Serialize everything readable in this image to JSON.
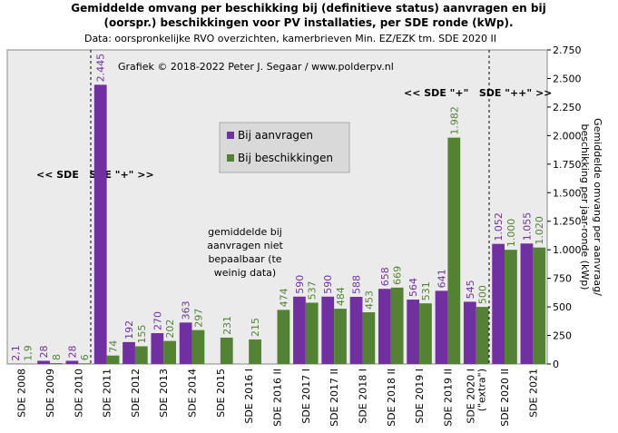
{
  "chart_data": {
    "type": "bar",
    "title_lines": [
      "Gemiddelde omvang per beschikking bij (definitieve status) aanvragen en bij",
      "(oorspr.) beschikkingen voor PV installaties, per SDE ronde (kWp)."
    ],
    "subtitle": "Data: oorspronkelijke RVO overzichten, kamerbrieven Min. EZ/EZK tm. SDE 2020 II",
    "y_label_lines": [
      "Gemiddelde omvang per aanvraag/",
      "beschikking per jaar-ronde (kWp)"
    ],
    "copyright": "Grafiek © 2018-2022 Peter J. Segaar / www.polderpv.nl",
    "era_label_1": "<< SDE   SDE \"+\" >>",
    "era_label_2": "<< SDE \"+\"   SDE \"++\" >>",
    "note_lines": [
      "gemiddelde bij",
      "aanvragen niet",
      "bepaalbaar (te",
      "weinig data)"
    ],
    "categories": [
      "SDE 2008",
      "SDE 2009",
      "SDE 2010",
      "SDE 2011",
      "SDE 2012",
      "SDE 2013",
      "SDE 2014",
      "SDE 2015",
      "SDE 2016 I",
      "SDE 2016 II",
      "SDE 2017 I",
      "SDE 2017 II",
      "SDE 2018 I",
      "SDE 2018 II",
      "SDE 2019 I",
      "SDE 2019 II",
      "SDE 2020 I (\"extra\")",
      "SDE 2020 II",
      "SDE 2021"
    ],
    "series": [
      {
        "name": "Bij aanvragen",
        "color": "#7030a0",
        "values": [
          2.1,
          28,
          28,
          2445,
          192,
          270,
          363,
          null,
          null,
          null,
          590,
          590,
          588,
          658,
          564,
          641,
          545,
          1052,
          1055
        ],
        "value_labels": [
          "2,1",
          "28",
          "28",
          "2.445",
          "192",
          "270",
          "363",
          null,
          null,
          null,
          "590",
          "590",
          "588",
          "658",
          "564",
          "641",
          "545",
          "1.052",
          "1.055"
        ]
      },
      {
        "name": "Bij beschikkingen",
        "color": "#548235",
        "values": [
          1.9,
          8,
          6,
          74,
          155,
          202,
          297,
          231,
          215,
          474,
          537,
          484,
          453,
          669,
          531,
          1982,
          500,
          1000,
          1020
        ],
        "value_labels": [
          "1,9",
          "8",
          "6",
          "74",
          "155",
          "202",
          "297",
          "231",
          "215",
          "474",
          "537",
          "484",
          "453",
          "669",
          "531",
          "1.982",
          "500",
          "1.000",
          "1.020"
        ]
      }
    ],
    "ylim": [
      0,
      2750
    ],
    "yticks": [
      0,
      250,
      500,
      750,
      {
        "value": 1000,
        "label": "1.000"
      },
      {
        "value": 1250,
        "label": "1.250"
      },
      {
        "value": 1500,
        "label": "1.500"
      },
      {
        "value": 1750,
        "label": "1.750"
      },
      {
        "value": 2000,
        "label": "2.000"
      },
      {
        "value": 2250,
        "label": "2.250"
      },
      {
        "value": 2500,
        "label": "2.500"
      },
      {
        "value": 2750,
        "label": "2.750"
      }
    ],
    "y_axis_side": "right"
  }
}
